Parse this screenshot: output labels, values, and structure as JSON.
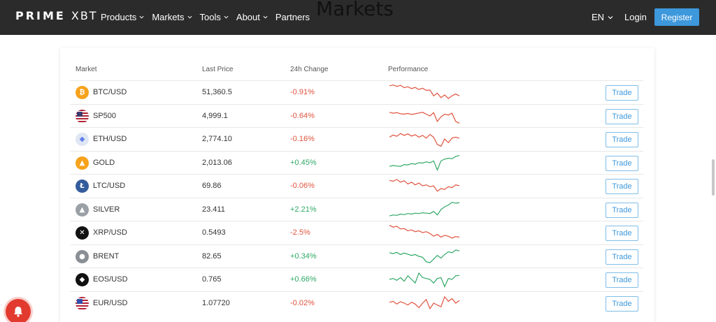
{
  "header": {
    "logo_left": "PRIME",
    "logo_right": "XBT",
    "nav": [
      {
        "label": "Products",
        "dropdown": true
      },
      {
        "label": "Markets",
        "dropdown": true
      },
      {
        "label": "Tools",
        "dropdown": true
      },
      {
        "label": "About",
        "dropdown": true
      },
      {
        "label": "Partners",
        "dropdown": false
      }
    ],
    "lang": "EN",
    "login": "Login",
    "register": "Register"
  },
  "page_title": "Markets",
  "table": {
    "columns": {
      "market": "Market",
      "last_price": "Last Price",
      "change": "24h Change",
      "performance": "Performance"
    },
    "trade_label": "Trade",
    "rows": [
      {
        "icon": "bitcoin-icon",
        "color": "#f7a21c",
        "glyph": "₿",
        "market": "BTC/USD",
        "price": "51,360.5",
        "change": "-0.91%",
        "trend": "neg",
        "spark": [
          0.85,
          0.9,
          0.82,
          0.88,
          0.75,
          0.8,
          0.7,
          0.76,
          0.65,
          0.72,
          0.6,
          0.62,
          0.3,
          0.45,
          0.2,
          0.35,
          0.15,
          0.3,
          0.4,
          0.3
        ]
      },
      {
        "icon": "us-flag-icon",
        "color": "#b22234",
        "glyph": "",
        "market": "SP500",
        "price": "4,999.1",
        "change": "-0.64%",
        "trend": "neg",
        "spark": [
          0.7,
          0.65,
          0.68,
          0.62,
          0.6,
          0.64,
          0.58,
          0.62,
          0.66,
          0.7,
          0.6,
          0.5,
          0.68,
          0.2,
          0.45,
          0.6,
          0.55,
          0.65,
          0.2,
          0.1
        ]
      },
      {
        "icon": "ethereum-icon",
        "color": "#dfe7f3",
        "glyph": "◆",
        "market": "ETH/USD",
        "price": "2,774.10",
        "change": "-0.16%",
        "trend": "neg",
        "spark": [
          0.6,
          0.72,
          0.65,
          0.8,
          0.7,
          0.78,
          0.66,
          0.74,
          0.6,
          0.7,
          0.55,
          0.75,
          0.6,
          0.2,
          0.1,
          0.5,
          0.3,
          0.55,
          0.6,
          0.55
        ]
      },
      {
        "icon": "gold-icon",
        "color": "#f7a21c",
        "glyph": "▲",
        "market": "GOLD",
        "price": "2,013.06",
        "change": "+0.45%",
        "trend": "pos",
        "spark": [
          0.3,
          0.35,
          0.32,
          0.3,
          0.4,
          0.38,
          0.45,
          0.42,
          0.5,
          0.48,
          0.55,
          0.5,
          0.6,
          0.1,
          0.6,
          0.7,
          0.75,
          0.72,
          0.85,
          0.9
        ]
      },
      {
        "icon": "litecoin-icon",
        "color": "#345d9d",
        "glyph": "Ł",
        "market": "LTC/USD",
        "price": "69.86",
        "change": "-0.06%",
        "trend": "neg",
        "spark": [
          0.8,
          0.75,
          0.85,
          0.7,
          0.78,
          0.6,
          0.7,
          0.55,
          0.65,
          0.5,
          0.55,
          0.45,
          0.5,
          0.2,
          0.35,
          0.3,
          0.45,
          0.4,
          0.55,
          0.5
        ]
      },
      {
        "icon": "silver-icon",
        "color": "#9aa0a6",
        "glyph": "▲",
        "market": "SILVER",
        "price": "23.411",
        "change": "+2.21%",
        "trend": "pos",
        "spark": [
          0.15,
          0.2,
          0.18,
          0.25,
          0.22,
          0.28,
          0.25,
          0.3,
          0.28,
          0.32,
          0.3,
          0.28,
          0.4,
          0.2,
          0.5,
          0.65,
          0.75,
          0.9,
          0.85,
          0.88
        ]
      },
      {
        "icon": "xrp-icon",
        "color": "#111111",
        "glyph": "✕",
        "market": "XRP/USD",
        "price": "0.5493",
        "change": "-2.5%",
        "trend": "neg",
        "spark": [
          0.9,
          0.8,
          0.85,
          0.7,
          0.72,
          0.6,
          0.65,
          0.55,
          0.6,
          0.5,
          0.55,
          0.45,
          0.3,
          0.4,
          0.25,
          0.35,
          0.3,
          0.2,
          0.28,
          0.25
        ]
      },
      {
        "icon": "brent-icon",
        "color": "#8a8f96",
        "glyph": "●",
        "market": "BRENT",
        "price": "82.65",
        "change": "+0.34%",
        "trend": "pos",
        "spark": [
          0.7,
          0.65,
          0.72,
          0.6,
          0.68,
          0.62,
          0.55,
          0.6,
          0.5,
          0.45,
          0.2,
          0.15,
          0.35,
          0.55,
          0.4,
          0.6,
          0.75,
          0.7,
          0.85,
          0.8
        ]
      },
      {
        "icon": "eos-icon",
        "color": "#111111",
        "glyph": "◆",
        "market": "EOS/USD",
        "price": "0.765",
        "change": "+0.66%",
        "trend": "pos",
        "spark": [
          0.5,
          0.55,
          0.45,
          0.6,
          0.4,
          0.7,
          0.5,
          0.3,
          0.85,
          0.6,
          0.55,
          0.5,
          0.3,
          0.55,
          0.6,
          0.1,
          0.55,
          0.5,
          0.7,
          0.72
        ]
      },
      {
        "icon": "eu-us-flag-icon",
        "color": "#2f4fa8",
        "glyph": "",
        "market": "EUR/USD",
        "price": "1.07720",
        "change": "-0.02%",
        "trend": "neg",
        "spark": [
          0.55,
          0.6,
          0.45,
          0.58,
          0.5,
          0.4,
          0.55,
          0.45,
          0.25,
          0.5,
          0.7,
          0.2,
          0.5,
          0.4,
          0.3,
          0.85,
          0.6,
          0.75,
          0.5,
          0.65
        ]
      }
    ]
  }
}
